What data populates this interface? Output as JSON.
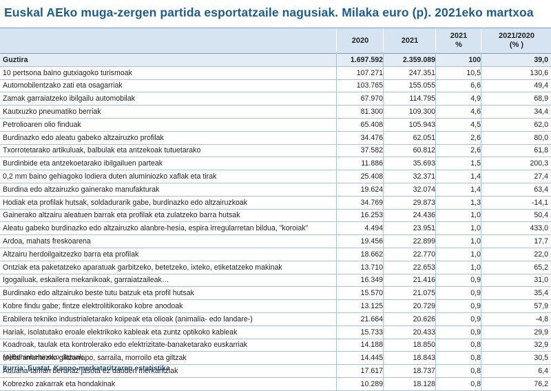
{
  "title": "Euskal AEko muga-zergen partida esportatzaile nagusiak. Milaka euro (p). 2021eko martxoa",
  "headers": {
    "col_2020": "2020",
    "col_2021": "2021",
    "col_pct_line1": "2021",
    "col_pct_line2": "%",
    "col_var_line1": "2021/2020",
    "col_var_line2": "(% )"
  },
  "total": {
    "name": "Guztira",
    "v2020": "1.697.592",
    "v2021": "2.359.089",
    "pct": "100",
    "var": "39,0"
  },
  "rows": [
    {
      "name": "10 pertsona baino gutxiagoko turismoak",
      "v2020": "107.271",
      "v2021": "247.351",
      "pct": "10,5",
      "var": "130,6"
    },
    {
      "name": "Automobilentzako zati eta osagarriak",
      "v2020": "103.765",
      "v2021": "155.055",
      "pct": "6,6",
      "var": "49,4"
    },
    {
      "name": "Zamak garraiatzeko ibilgailu automobilak",
      "v2020": "67.970",
      "v2021": "114.795",
      "pct": "4,9",
      "var": "68,9"
    },
    {
      "name": "Kautxuzko pneumatiko berriak",
      "v2020": "81.300",
      "v2021": "109.300",
      "pct": "4,6",
      "var": "34,4"
    },
    {
      "name": "Petrolioaren olio finduak",
      "v2020": "65.408",
      "v2021": "105.943",
      "pct": "4,5",
      "var": "62,0"
    },
    {
      "name": "Burdinazko edo aleatu gabeko altzairuzko profilak",
      "v2020": "34.476",
      "v2021": "62.051",
      "pct": "2,6",
      "var": "80,0"
    },
    {
      "name": "Txorrotetarako artikuluak, balbulak eta antzekoak tutuetarako",
      "v2020": "37.582",
      "v2021": "60.812",
      "pct": "2,6",
      "var": "61,8"
    },
    {
      "name": "Burdinbide eta antzekoetarako ibilgailuen parteak",
      "v2020": "11.886",
      "v2021": "35.693",
      "pct": "1,5",
      "var": "200,3"
    },
    {
      "name": "0,2 mm baino gehiagoko lodiera duten aluminiozko xaflak eta tirak",
      "v2020": "25.408",
      "v2021": "32.371",
      "pct": "1,4",
      "var": "27,4"
    },
    {
      "name": "Burdina edo altzairuzko gainerako manufakturak",
      "v2020": "19.624",
      "v2021": "32.074",
      "pct": "1,4",
      "var": "63,4"
    },
    {
      "name": "Hodiak eta profilak hutsak, soldadurarik gabe, burdinazko edo altzairuzkoak",
      "v2020": "34.769",
      "v2021": "29.873",
      "pct": "1,3",
      "var": "-14,1"
    },
    {
      "name": "Gainerako altzairu aleatuen barrak eta profilak eta zulatzeko barra hutsak",
      "v2020": "16.253",
      "v2021": "24.436",
      "pct": "1,0",
      "var": "50,4"
    },
    {
      "name": "Aleatu gabeko burdinazko edo altzairuzko alanbre-hesia, espira irregularretan bildua, \"koroiak\"",
      "v2020": "4.494",
      "v2021": "23.951",
      "pct": "1,0",
      "var": "433,0"
    },
    {
      "name": "Ardoa, mahats freskoarena",
      "v2020": "19.456",
      "v2021": "22.899",
      "pct": "1,0",
      "var": "17,7"
    },
    {
      "name": "Altzairu herdoilgaitzezko barra eta profilak",
      "v2020": "18.662",
      "v2021": "22.770",
      "pct": "1,0",
      "var": "22,0"
    },
    {
      "name": "Ontziak eta paketatzeko aparatuak garbitzeko, betetzeko, ixteko, etiketatzeko makinak",
      "v2020": "13.710",
      "v2021": "22.653",
      "pct": "1,0",
      "var": "65,2"
    },
    {
      "name": "Igogailuak, eskailera mekanikoak, garraiatzaileak…",
      "v2020": "16.349",
      "v2021": "21.416",
      "pct": "0,9",
      "var": "31,0"
    },
    {
      "name": "Burdinako edo altzairuko beste tutu batzuk eta profil hutsak",
      "v2020": "15.570",
      "v2021": "21.075",
      "pct": "0,9",
      "var": "35,4"
    },
    {
      "name": "Kobre findu gabe; fintze elektrolitikorako kobre anodoak",
      "v2020": "13.125",
      "v2021": "20.729",
      "pct": "0,9",
      "var": "57,9"
    },
    {
      "name": "Erabilera tekniko industrialetarako koipeak eta olioak (animalia- edo landare-)",
      "v2020": "21.664",
      "v2021": "20.626",
      "pct": "0,9",
      "var": "-4,8"
    },
    {
      "name": "Hariak, isolatutako eroale elektrikoko kableak eta zuntz optikoko kableak",
      "v2020": "15.733",
      "v2021": "20.433",
      "pct": "0,9",
      "var": "29,9"
    },
    {
      "name": "Koadroak, taulak eta kontrolerako edo elektrizitate-banaketarako euskarriak",
      "v2020": "14.188",
      "v2021": "18.850",
      "pct": "0,8",
      "var": "32,9"
    },
    {
      "name": "Metal arruntezko giltzarrapo, sarraila, morroilo eta giltzak",
      "v2020": "14.445",
      "v2021": "18.843",
      "pct": "0,8",
      "var": "30,5"
    },
    {
      "name": "Aduana-tarifan berariaz jasota ez dauden merkantziak",
      "v2020": "17.617",
      "v2021": "18.737",
      "pct": "0,8",
      "var": "6,4"
    },
    {
      "name": "Kobrezko zakarrak eta hondakinak",
      "v2020": "10.289",
      "v2021": "18.128",
      "pct": "0,8",
      "var": "76,2"
    }
  ],
  "footnote": "(p)Behinbehineko datuak",
  "source": "Iturria: Eustat. Kanpo-merkataritzaren estatistika"
}
